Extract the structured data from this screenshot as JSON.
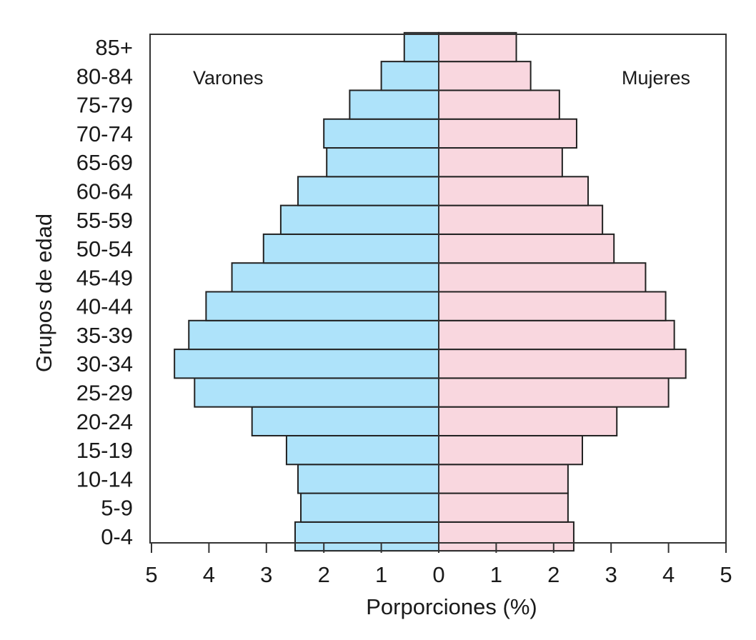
{
  "chart_data": {
    "type": "bar",
    "orientation": "horizontal-population-pyramid",
    "ylabel": "Grupos de edad",
    "xlabel": "Porporciones (%)",
    "xlim": [
      -5,
      5
    ],
    "x_ticks": [
      "5",
      "4",
      "3",
      "2",
      "1",
      "0",
      "1",
      "2",
      "3",
      "4",
      "5"
    ],
    "categories": [
      "0-4",
      "5-9",
      "10-14",
      "15-19",
      "20-24",
      "25-29",
      "30-34",
      "35-39",
      "40-44",
      "45-49",
      "50-54",
      "55-59",
      "60-64",
      "65-69",
      "70-74",
      "75-79",
      "80-84",
      "85+"
    ],
    "series": [
      {
        "name": "Varones",
        "color": "#aee3fa",
        "values": [
          2.5,
          2.4,
          2.45,
          2.65,
          3.25,
          4.25,
          4.6,
          4.35,
          4.05,
          3.6,
          3.05,
          2.75,
          2.45,
          1.95,
          2.0,
          1.55,
          1.0,
          0.6
        ]
      },
      {
        "name": "Mujeres",
        "color": "#f9d7df",
        "values": [
          2.35,
          2.25,
          2.25,
          2.5,
          3.1,
          4.0,
          4.3,
          4.1,
          3.95,
          3.6,
          3.05,
          2.85,
          2.6,
          2.15,
          2.4,
          2.1,
          1.6,
          1.35
        ]
      }
    ],
    "legend_placement": "inside-top",
    "grid": false
  }
}
